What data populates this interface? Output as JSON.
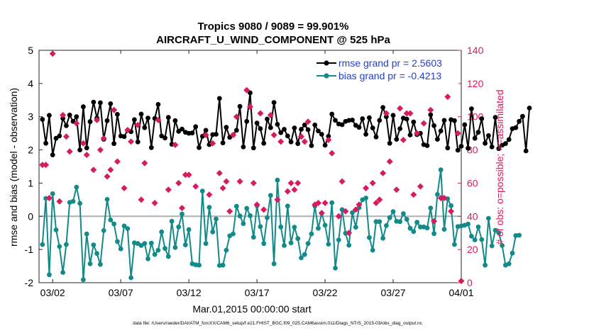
{
  "chart_data": {
    "type": "line",
    "title_line1": "Tropics 9080 / 9089 = 99.901%",
    "title_line2": "AIRCRAFT_U_WIND_COMPONENT @ 525 hPa",
    "xlabel": "Mar.01,2015 00:00:00 start",
    "ylabel_left": "rmse and bias (model - observation)",
    "ylabel_right": "# of obs: o=possible; ×=assimilated",
    "footnote": "data file: /Users/raeder/DAI/ATM_forcXX/CAM6_setup/f.e21.FHIST_BGC.f09_025.CAM6assim.011/Diags_NTrS_2015-03/obs_diag_output.nc",
    "xlim": [
      0,
      31
    ],
    "ylim_left": [
      -2,
      5
    ],
    "ylim_right": [
      0,
      140
    ],
    "x_ticks": [
      {
        "value": 1,
        "label": "03/02"
      },
      {
        "value": 6,
        "label": "03/07"
      },
      {
        "value": 11,
        "label": "03/12"
      },
      {
        "value": 16,
        "label": "03/17"
      },
      {
        "value": 21,
        "label": "03/22"
      },
      {
        "value": 26,
        "label": "03/27"
      },
      {
        "value": 31,
        "label": "04/01"
      }
    ],
    "y_ticks_left": [
      -2,
      -1,
      0,
      1,
      2,
      3,
      4,
      5
    ],
    "y_ticks_right": [
      0,
      20,
      40,
      60,
      80,
      100,
      120,
      140
    ],
    "legend": [
      {
        "label": "rmse grand pr = 2.5603",
        "color": "#000000"
      },
      {
        "label": "bias grand pr = -0.4213",
        "color": "#138a8a"
      }
    ],
    "colors": {
      "rmse": "#000000",
      "bias": "#138a8a",
      "obs": "#d81b60",
      "zero_line": "#b0b0b0",
      "legend_text": "#1f3ed6",
      "right_axis": "#d81b60"
    },
    "series": [
      {
        "name": "rmse",
        "axis": "left",
        "x_start": 0.25,
        "x_step": 0.25,
        "values": [
          2.92,
          2.2,
          3.04,
          1.85,
          2.35,
          2.42,
          2.95,
          2.73,
          3.05,
          2.86,
          3.0,
          2.0,
          3.3,
          2.06,
          2.85,
          3.44,
          2.96,
          3.42,
          2.32,
          2.88,
          3.39,
          2.19,
          3.07,
          2.42,
          2.4,
          2.59,
          2.55,
          2.91,
          2.24,
          3.08,
          2.67,
          2.96,
          2.07,
          2.95,
          3.37,
          2.42,
          2.36,
          2.98,
          2.17,
          2.88,
          2.56,
          2.63,
          2.53,
          2.5,
          2.51,
          2.7,
          2.07,
          2.41,
          2.59,
          2.16,
          2.46,
          2.47,
          3.55,
          2.21,
          2.68,
          2.38,
          2.45,
          2.59,
          3.31,
          2.09,
          2.86,
          3.72,
          2.06,
          2.81,
          2.64,
          2.2,
          2.93,
          2.67,
          3.43,
          2.77,
          2.52,
          2.62,
          2.42,
          2.24,
          2.66,
          2.19,
          2.62,
          2.75,
          2.61,
          2.13,
          2.75,
          2.57,
          2.47,
          2.14,
          2.41,
          3.08,
          2.89,
          2.78,
          2.76,
          2.86,
          2.89,
          2.9,
          2.74,
          2.68,
          2.94,
          2.47,
          2.97,
          2.66,
          2.39,
          2.89,
          3.28,
          3.0,
          2.2,
          3.04,
          2.32,
          2.64,
          2.96,
          2.93,
          2.45,
          2.84,
          2.46,
          2.5,
          2.16,
          2.13,
          3.06,
          2.73,
          2.32,
          2.57,
          2.89,
          2.06,
          2.91,
          2.88,
          1.99,
          2.11,
          2.76,
          2.05,
          3.24,
          2.35,
          2.53,
          2.94,
          2.2,
          2.43,
          2.09,
          2.98,
          2.04,
          2.14,
          2.19,
          2.31,
          2.64,
          2.67,
          2.86,
          3.01,
          1.97,
          3.26
        ]
      },
      {
        "name": "bias",
        "axis": "left",
        "x_start": 0.25,
        "x_step": 0.25,
        "values": [
          -0.85,
          0.54,
          -1.76,
          0.68,
          -0.41,
          -0.91,
          -1.69,
          -0.85,
          0.42,
          0.45,
          0.88,
          0.39,
          -1.91,
          -0.53,
          -1.43,
          -0.86,
          -1.12,
          -1.45,
          -0.43,
          0.51,
          -0.11,
          -0.23,
          -0.76,
          -0.98,
          -0.29,
          -0.37,
          -1.85,
          -0.8,
          -0.82,
          -0.88,
          -0.82,
          -1.28,
          -0.81,
          -1.15,
          -1.02,
          -0.47,
          -0.97,
          -1.21,
          -0.15,
          -0.94,
          -0.32,
          0.07,
          -0.86,
          -0.4,
          -1.43,
          -1.46,
          -1.47,
          0.76,
          -0.82,
          0.27,
          -0.47,
          -0.08,
          -1.48,
          -1.47,
          -1.02,
          -0.59,
          -0.53,
          0.3,
          0.01,
          -0.22,
          0.24,
          0.02,
          -0.63,
          0.32,
          -0.31,
          -0.82,
          -0.04,
          0.63,
          -1.43,
          1.09,
          -0.32,
          -0.88,
          0.31,
          -0.8,
          -0.33,
          -0.67,
          -1.25,
          -1.15,
          -0.82,
          -0.53,
          0.31,
          -0.36,
          0.09,
          -0.27,
          -0.84,
          0.41,
          -1.56,
          -0.71,
          0.2,
          -0.51,
          -0.87,
          0.11,
          -0.33,
          0.26,
          0.5,
          0.55,
          -0.64,
          -1.02,
          -0.16,
          -0.16,
          -0.66,
          -0.28,
          -0.04,
          0.14,
          -0.15,
          -0.16,
          0.08,
          -0.09,
          -0.36,
          -0.46,
          -0.18,
          -0.32,
          -0.32,
          -0.35,
          0.25,
          -0.52,
          0.66,
          1.4,
          -0.39,
          0.53,
          0.32,
          -0.85,
          -0.31,
          -0.29,
          -0.27,
          -0.23,
          -0.6,
          -0.71,
          -0.32,
          -0.7,
          -1.47,
          -0.06,
          -0.89,
          -0.42,
          -0.5,
          -0.88,
          -1.47,
          -1.43,
          -1.11,
          -0.58,
          -0.57
        ]
      }
    ],
    "obs_possible": [
      [
        0.25,
        71
      ],
      [
        0.5,
        71
      ],
      [
        0.75,
        51
      ],
      [
        1,
        138
      ],
      [
        1.5,
        49
      ],
      [
        1.75,
        101
      ],
      [
        2,
        88
      ],
      [
        2.25,
        79
      ],
      [
        2.75,
        96
      ],
      [
        3.25,
        84
      ],
      [
        3.5,
        77
      ],
      [
        4,
        68
      ],
      [
        4.25,
        98
      ],
      [
        4.5,
        80
      ],
      [
        4.75,
        87
      ],
      [
        5,
        64
      ],
      [
        5.25,
        68
      ],
      [
        5.5,
        104
      ],
      [
        5.75,
        73
      ],
      [
        6.25,
        57
      ],
      [
        6.5,
        92
      ],
      [
        6.75,
        85
      ],
      [
        7.25,
        95
      ],
      [
        7.5,
        50
      ],
      [
        7.75,
        72
      ],
      [
        8.5,
        48
      ],
      [
        8.75,
        98
      ],
      [
        9.5,
        56
      ],
      [
        10,
        83
      ],
      [
        10.25,
        60
      ],
      [
        10.5,
        45
      ],
      [
        10.75,
        65
      ],
      [
        11,
        65
      ],
      [
        11.5,
        58
      ],
      [
        12.25,
        89
      ],
      [
        12.5,
        53
      ],
      [
        12.75,
        84
      ],
      [
        13.25,
        66
      ],
      [
        13.5,
        57
      ],
      [
        13.75,
        61
      ],
      [
        14,
        43
      ],
      [
        14.25,
        89
      ],
      [
        14.5,
        100
      ],
      [
        14.75,
        61
      ],
      [
        15.25,
        116
      ],
      [
        15.5,
        106
      ],
      [
        15.75,
        60
      ],
      [
        16,
        47
      ],
      [
        16.25,
        102
      ],
      [
        16.5,
        44
      ],
      [
        17,
        101
      ],
      [
        17.25,
        89
      ],
      [
        17.5,
        50
      ],
      [
        17.75,
        85
      ],
      [
        18.25,
        55
      ],
      [
        18.5,
        60
      ],
      [
        18.75,
        56
      ],
      [
        19,
        60
      ],
      [
        19.25,
        88
      ],
      [
        19.5,
        85
      ],
      [
        19.75,
        97
      ],
      [
        20.25,
        47
      ],
      [
        20.5,
        48
      ],
      [
        20.75,
        42
      ],
      [
        21,
        48
      ],
      [
        21.25,
        86
      ],
      [
        21.5,
        78
      ],
      [
        22,
        40
      ],
      [
        22.25,
        61
      ],
      [
        22.5,
        43
      ],
      [
        22.75,
        30
      ],
      [
        23.25,
        44
      ],
      [
        23.5,
        47
      ],
      [
        24,
        57
      ],
      [
        24.5,
        60
      ],
      [
        24.75,
        48
      ],
      [
        25,
        50
      ],
      [
        25.25,
        66
      ],
      [
        25.5,
        102
      ],
      [
        25.75,
        73
      ],
      [
        26.25,
        56
      ],
      [
        26.5,
        105
      ],
      [
        26.75,
        86
      ],
      [
        27,
        102
      ],
      [
        27.25,
        102
      ],
      [
        27.5,
        53
      ],
      [
        27.75,
        90
      ],
      [
        28,
        58
      ],
      [
        28.25,
        96
      ],
      [
        28.75,
        104
      ],
      [
        29,
        37
      ],
      [
        29.5,
        51
      ],
      [
        29.75,
        51
      ],
      [
        30,
        112
      ],
      [
        30.25,
        43
      ],
      [
        30.75,
        90
      ]
    ],
    "obs_assimilated": [
      [
        31,
        1
      ]
    ]
  }
}
